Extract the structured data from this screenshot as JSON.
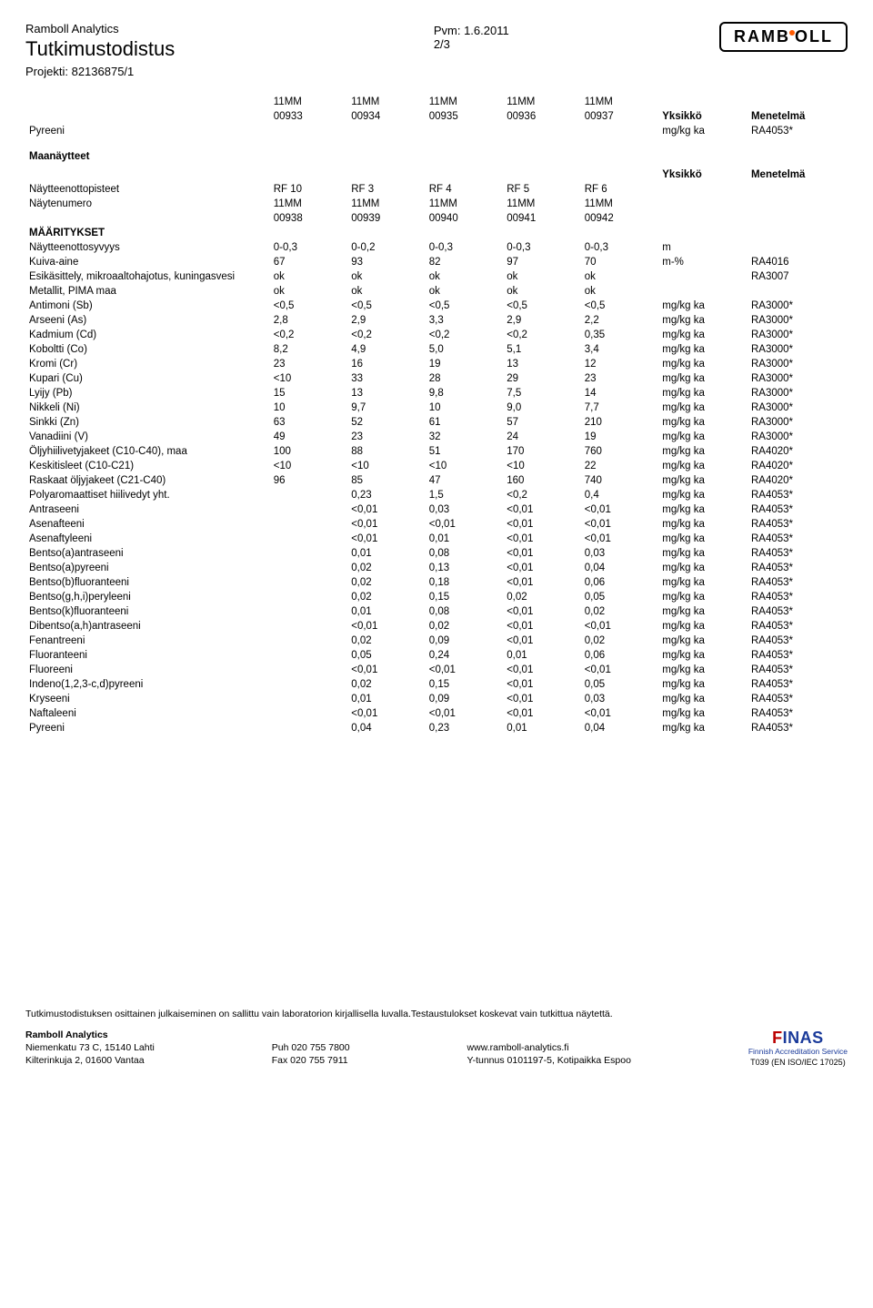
{
  "header": {
    "company": "Ramboll Analytics",
    "title": "Tutkimustodistus",
    "project_label": "Projekti:",
    "project_id": "82136875/1",
    "date_label": "Pvm:",
    "date": "1.6.2011",
    "page": "2/3",
    "logo_text": "RAMBOLL"
  },
  "top_table": {
    "sample_headers": [
      {
        "l1": "11MM",
        "l2": "00933"
      },
      {
        "l1": "11MM",
        "l2": "00934"
      },
      {
        "l1": "11MM",
        "l2": "00935"
      },
      {
        "l1": "11MM",
        "l2": "00936"
      },
      {
        "l1": "11MM",
        "l2": "00937"
      }
    ],
    "unit_header": "Yksikkö",
    "method_header": "Menetelmä",
    "row": {
      "label": "Pyreeni",
      "v": [
        "",
        "",
        "",
        "",
        ""
      ],
      "unit": "mg/kg ka",
      "method": "RA4053*"
    }
  },
  "section2": {
    "heading": "Maanäytteet",
    "unit_header": "Yksikkö",
    "method_header": "Menetelmä",
    "pisteet": {
      "label": "Näytteenottopisteet",
      "v": [
        "RF 10",
        "RF 3",
        "RF 4",
        "RF 5",
        "RF 6"
      ]
    },
    "numero": {
      "label": "Näytenumero",
      "l1": [
        "11MM",
        "11MM",
        "11MM",
        "11MM",
        "11MM"
      ],
      "l2": [
        "00938",
        "00939",
        "00940",
        "00941",
        "00942"
      ]
    },
    "maaritykset": "MÄÄRITYKSET",
    "rows": [
      {
        "label": "Näytteenottosyvyys",
        "v": [
          "0-0,3",
          "0-0,2",
          "0-0,3",
          "0-0,3",
          "0-0,3"
        ],
        "unit": "m",
        "method": ""
      },
      {
        "label": "Kuiva-aine",
        "v": [
          "67",
          "93",
          "82",
          "97",
          "70"
        ],
        "unit": "m-%",
        "method": "RA4016"
      },
      {
        "label": "Esikäsittely, mikroaaltohajotus, kuningasvesi",
        "v": [
          "ok",
          "ok",
          "ok",
          "ok",
          "ok"
        ],
        "unit": "",
        "method": "RA3007"
      },
      {
        "label": "Metallit, PIMA maa",
        "v": [
          "ok",
          "ok",
          "ok",
          "ok",
          "ok"
        ],
        "unit": "",
        "method": ""
      },
      {
        "label": "Antimoni (Sb)",
        "v": [
          "<0,5",
          "<0,5",
          "<0,5",
          "<0,5",
          "<0,5"
        ],
        "unit": "mg/kg ka",
        "method": "RA3000*"
      },
      {
        "label": "Arseeni (As)",
        "v": [
          "2,8",
          "2,9",
          "3,3",
          "2,9",
          "2,2"
        ],
        "unit": "mg/kg ka",
        "method": "RA3000*"
      },
      {
        "label": "Kadmium (Cd)",
        "v": [
          "<0,2",
          "<0,2",
          "<0,2",
          "<0,2",
          "0,35"
        ],
        "unit": "mg/kg ka",
        "method": "RA3000*"
      },
      {
        "label": "Koboltti (Co)",
        "v": [
          "8,2",
          "4,9",
          "5,0",
          "5,1",
          "3,4"
        ],
        "unit": "mg/kg ka",
        "method": "RA3000*"
      },
      {
        "label": "Kromi (Cr)",
        "v": [
          "23",
          "16",
          "19",
          "13",
          "12"
        ],
        "unit": "mg/kg ka",
        "method": "RA3000*"
      },
      {
        "label": "Kupari (Cu)",
        "v": [
          "<10",
          "33",
          "28",
          "29",
          "23"
        ],
        "unit": "mg/kg ka",
        "method": "RA3000*"
      },
      {
        "label": "Lyijy (Pb)",
        "v": [
          "15",
          "13",
          "9,8",
          "7,5",
          "14"
        ],
        "unit": "mg/kg ka",
        "method": "RA3000*"
      },
      {
        "label": "Nikkeli (Ni)",
        "v": [
          "10",
          "9,7",
          "10",
          "9,0",
          "7,7"
        ],
        "unit": "mg/kg ka",
        "method": "RA3000*"
      },
      {
        "label": "Sinkki (Zn)",
        "v": [
          "63",
          "52",
          "61",
          "57",
          "210"
        ],
        "unit": "mg/kg ka",
        "method": "RA3000*"
      },
      {
        "label": "Vanadiini (V)",
        "v": [
          "49",
          "23",
          "32",
          "24",
          "19"
        ],
        "unit": "mg/kg ka",
        "method": "RA3000*"
      },
      {
        "label": "Öljyhiilivetyjakeet (C10-C40), maa",
        "v": [
          "100",
          "88",
          "51",
          "170",
          "760"
        ],
        "unit": "mg/kg ka",
        "method": "RA4020*"
      },
      {
        "label": "Keskitisleet (C10-C21)",
        "v": [
          "<10",
          "<10",
          "<10",
          "<10",
          "22"
        ],
        "unit": "mg/kg ka",
        "method": "RA4020*"
      },
      {
        "label": "Raskaat öljyjakeet (C21-C40)",
        "v": [
          "96",
          "85",
          "47",
          "160",
          "740"
        ],
        "unit": "mg/kg ka",
        "method": "RA4020*"
      },
      {
        "label": "Polyaromaattiset hiilivedyt yht.",
        "v": [
          "",
          "0,23",
          "1,5",
          "<0,2",
          "0,4"
        ],
        "unit": "mg/kg ka",
        "method": "RA4053*"
      },
      {
        "label": "Antraseeni",
        "v": [
          "",
          "<0,01",
          "0,03",
          "<0,01",
          "<0,01"
        ],
        "unit": "mg/kg ka",
        "method": "RA4053*"
      },
      {
        "label": "Asenafteeni",
        "v": [
          "",
          "<0,01",
          "<0,01",
          "<0,01",
          "<0,01"
        ],
        "unit": "mg/kg ka",
        "method": "RA4053*"
      },
      {
        "label": "Asenaftyleeni",
        "v": [
          "",
          "<0,01",
          "0,01",
          "<0,01",
          "<0,01"
        ],
        "unit": "mg/kg ka",
        "method": "RA4053*"
      },
      {
        "label": "Bentso(a)antraseeni",
        "v": [
          "",
          "0,01",
          "0,08",
          "<0,01",
          "0,03"
        ],
        "unit": "mg/kg ka",
        "method": "RA4053*"
      },
      {
        "label": "Bentso(a)pyreeni",
        "v": [
          "",
          "0,02",
          "0,13",
          "<0,01",
          "0,04"
        ],
        "unit": "mg/kg ka",
        "method": "RA4053*"
      },
      {
        "label": "Bentso(b)fluoranteeni",
        "v": [
          "",
          "0,02",
          "0,18",
          "<0,01",
          "0,06"
        ],
        "unit": "mg/kg ka",
        "method": "RA4053*"
      },
      {
        "label": "Bentso(g,h,i)peryleeni",
        "v": [
          "",
          "0,02",
          "0,15",
          "0,02",
          "0,05"
        ],
        "unit": "mg/kg ka",
        "method": "RA4053*"
      },
      {
        "label": "Bentso(k)fluoranteeni",
        "v": [
          "",
          "0,01",
          "0,08",
          "<0,01",
          "0,02"
        ],
        "unit": "mg/kg ka",
        "method": "RA4053*"
      },
      {
        "label": "Dibentso(a,h)antraseeni",
        "v": [
          "",
          "<0,01",
          "0,02",
          "<0,01",
          "<0,01"
        ],
        "unit": "mg/kg ka",
        "method": "RA4053*"
      },
      {
        "label": "Fenantreeni",
        "v": [
          "",
          "0,02",
          "0,09",
          "<0,01",
          "0,02"
        ],
        "unit": "mg/kg ka",
        "method": "RA4053*"
      },
      {
        "label": "Fluoranteeni",
        "v": [
          "",
          "0,05",
          "0,24",
          "0,01",
          "0,06"
        ],
        "unit": "mg/kg ka",
        "method": "RA4053*"
      },
      {
        "label": "Fluoreeni",
        "v": [
          "",
          "<0,01",
          "<0,01",
          "<0,01",
          "<0,01"
        ],
        "unit": "mg/kg ka",
        "method": "RA4053*"
      },
      {
        "label": "Indeno(1,2,3-c,d)pyreeni",
        "v": [
          "",
          "0,02",
          "0,15",
          "<0,01",
          "0,05"
        ],
        "unit": "mg/kg ka",
        "method": "RA4053*"
      },
      {
        "label": "Kryseeni",
        "v": [
          "",
          "0,01",
          "0,09",
          "<0,01",
          "0,03"
        ],
        "unit": "mg/kg ka",
        "method": "RA4053*"
      },
      {
        "label": "Naftaleeni",
        "v": [
          "",
          "<0,01",
          "<0,01",
          "<0,01",
          "<0,01"
        ],
        "unit": "mg/kg ka",
        "method": "RA4053*"
      },
      {
        "label": "Pyreeni",
        "v": [
          "",
          "0,04",
          "0,23",
          "0,01",
          "0,04"
        ],
        "unit": "mg/kg ka",
        "method": "RA4053*"
      }
    ]
  },
  "footer": {
    "disclaimer": "Tutkimustodistuksen osittainen julkaiseminen on sallittu vain laboratorion kirjallisella luvalla.Testaustulokset koskevat vain tutkittua näytettä.",
    "block1": {
      "l1": "Ramboll Analytics",
      "l2": "Niemenkatu 73 C, 15140 Lahti",
      "l3": "Kilterinkuja 2, 01600 Vantaa"
    },
    "block2": {
      "l1": "Puh 020 755 7800",
      "l2": "Fax 020 755 7911"
    },
    "block3": {
      "l1": "www.ramboll-analytics.fi",
      "l2": "Y-tunnus 0101197-5, Kotipaikka Espoo"
    },
    "finas": {
      "sub": "Finnish Accreditation Service",
      "code": "T039 (EN ISO/IEC 17025)"
    }
  }
}
